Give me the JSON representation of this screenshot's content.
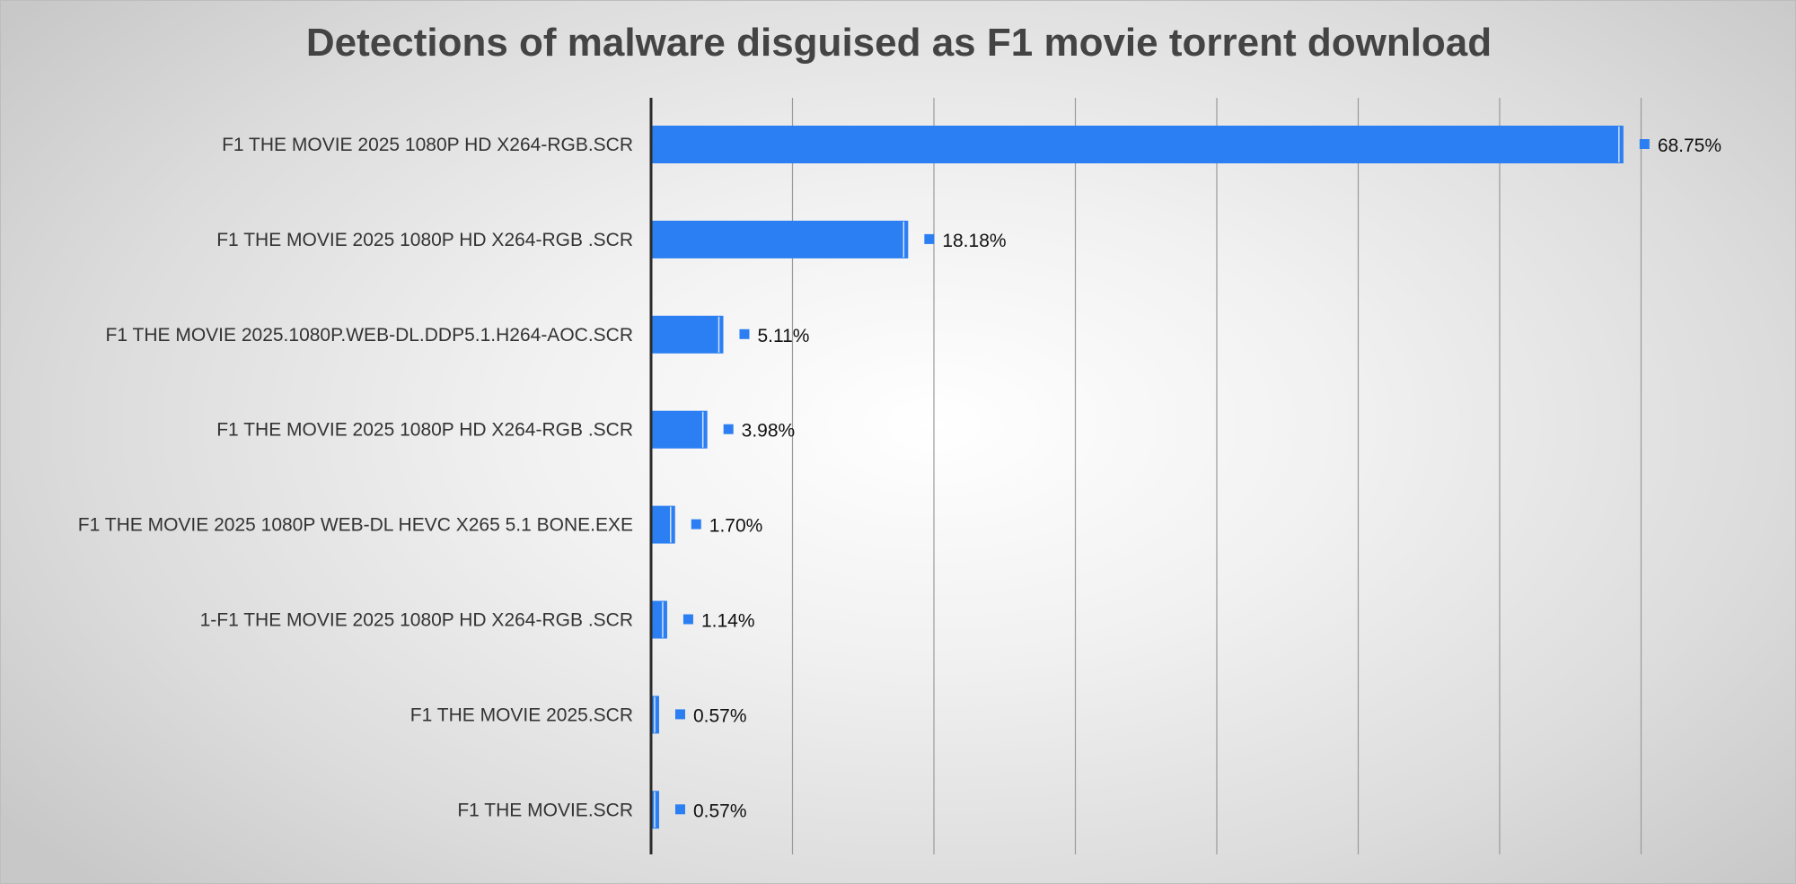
{
  "chart_data": {
    "type": "bar",
    "orientation": "horizontal",
    "title": "Detections of malware disguised as F1 movie torrent download",
    "xlabel": "",
    "ylabel": "",
    "xlim": [
      0,
      70
    ],
    "grid": true,
    "legend": "none",
    "bar_color": "#2B7FF2",
    "categories": [
      "F1 THE MOVIE 2025 1080P HD X264-RGB.SCR",
      "F1 THE MOVIE 2025 1080P HD X264-RGB .SCR",
      "F1 THE MOVIE 2025.1080P.WEB-DL.DDP5.1.H264-AOC.SCR",
      "F1 THE MOVIE 2025 1080P HD X264-RGB .SCR",
      "F1 THE MOVIE 2025 1080P WEB-DL HEVC X265 5.1 BONE.EXE",
      "1-F1 THE MOVIE 2025 1080P HD X264-RGB .SCR",
      "F1 THE MOVIE 2025.SCR",
      "F1 THE MOVIE.SCR"
    ],
    "values": [
      68.75,
      18.18,
      5.11,
      3.98,
      1.7,
      1.14,
      0.57,
      0.57
    ],
    "data_labels": [
      "68.75%",
      "18.18%",
      "5.11%",
      "3.98%",
      "1.70%",
      "1.14%",
      "0.57%",
      "0.57%"
    ]
  }
}
